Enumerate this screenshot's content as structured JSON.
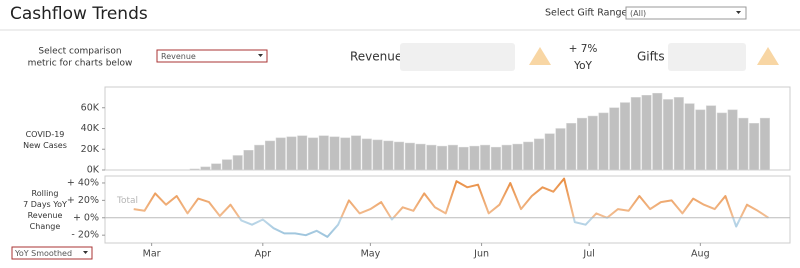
{
  "header": {
    "title": "Cashflow Trends",
    "gift_range_label": "Select Gift Range",
    "gift_range_value": "(All)"
  },
  "controls": {
    "metric_prompt": [
      "Select comparison",
      "metric for charts below"
    ],
    "metric_value": "Revenue",
    "smoothing_value": "YoY Smoothed"
  },
  "kpis": {
    "revenue_label": "Revenue",
    "yoy_value": "+ 7%",
    "yoy_label": "YoY",
    "gifts_label": "Gifts"
  },
  "chart_data": [
    {
      "type": "bar",
      "y_label_lines": [
        "COVID-19",
        "New Cases"
      ],
      "color": "#c0c0c0",
      "x": [
        72,
        75,
        78,
        81,
        84,
        87,
        90,
        93,
        96,
        99,
        102,
        105,
        108,
        111,
        114,
        117,
        120,
        123,
        126,
        129,
        132,
        135,
        138,
        141,
        144,
        147,
        150,
        153,
        156,
        159,
        162,
        165,
        168,
        171,
        174,
        177,
        180,
        183,
        186,
        189,
        192,
        195,
        198,
        201,
        204,
        207,
        210,
        213,
        216,
        219,
        222,
        225,
        228,
        231
      ],
      "values": [
        1000,
        3000,
        6000,
        10000,
        14000,
        19000,
        24000,
        28000,
        31000,
        32000,
        33000,
        31000,
        33000,
        32000,
        31000,
        33000,
        30000,
        29000,
        28000,
        27000,
        26000,
        25000,
        24000,
        23000,
        24000,
        22000,
        23000,
        24000,
        22000,
        24000,
        25000,
        27000,
        30000,
        35000,
        40000,
        45000,
        50000,
        52000,
        55000,
        60000,
        65000,
        70000,
        72000,
        74000,
        68000,
        70000,
        64000,
        58000,
        62000,
        55000,
        58000,
        50000,
        45000,
        50000
      ],
      "xlim": [
        47,
        238
      ],
      "ylim": [
        0,
        80000
      ],
      "yticks": [
        {
          "value": 0,
          "label": "0K"
        },
        {
          "value": 20000,
          "label": "20K"
        },
        {
          "value": 40000,
          "label": "40K"
        },
        {
          "value": 60000,
          "label": "60K"
        }
      ]
    },
    {
      "type": "line",
      "y_label_lines": [
        "Rolling",
        "7 Days YoY",
        "Revenue",
        "Change"
      ],
      "series_label": "Total",
      "color": "#e8893b",
      "negative_color": "#8fbcd8",
      "x": [
        55,
        58,
        61,
        64,
        67,
        70,
        73,
        76,
        79,
        82,
        85,
        88,
        91,
        94,
        97,
        100,
        103,
        106,
        109,
        112,
        115,
        118,
        121,
        124,
        127,
        130,
        133,
        136,
        139,
        142,
        145,
        148,
        151,
        154,
        157,
        160,
        163,
        166,
        169,
        172,
        175,
        178,
        181,
        184,
        187,
        190,
        193,
        196,
        199,
        202,
        205,
        208,
        211,
        214,
        217,
        220,
        223,
        226,
        229,
        232
      ],
      "values": [
        10,
        8,
        28,
        15,
        25,
        5,
        22,
        18,
        2,
        15,
        -3,
        -8,
        -2,
        -12,
        -18,
        -18,
        -20,
        -15,
        -22,
        -8,
        20,
        5,
        10,
        18,
        -2,
        12,
        8,
        28,
        12,
        5,
        42,
        35,
        38,
        5,
        15,
        40,
        10,
        25,
        35,
        30,
        45,
        -5,
        -8,
        5,
        0,
        10,
        8,
        25,
        10,
        18,
        20,
        5,
        22,
        15,
        10,
        25,
        -10,
        15,
        8,
        0
      ],
      "xlim": [
        47,
        238
      ],
      "ylim": [
        -29,
        48
      ],
      "yticks": [
        {
          "value": -20,
          "label": "- 20%"
        },
        {
          "value": 0,
          "label": "+ 0%"
        },
        {
          "value": 20,
          "label": "+ 20%"
        },
        {
          "value": 40,
          "label": "+ 40%"
        }
      ],
      "xticks": [
        {
          "value": 60,
          "label": "Mar"
        },
        {
          "value": 91,
          "label": "Apr"
        },
        {
          "value": 121,
          "label": "May"
        },
        {
          "value": 152,
          "label": "Jun"
        },
        {
          "value": 182,
          "label": "Jul"
        },
        {
          "value": 213,
          "label": "Aug"
        }
      ]
    }
  ]
}
